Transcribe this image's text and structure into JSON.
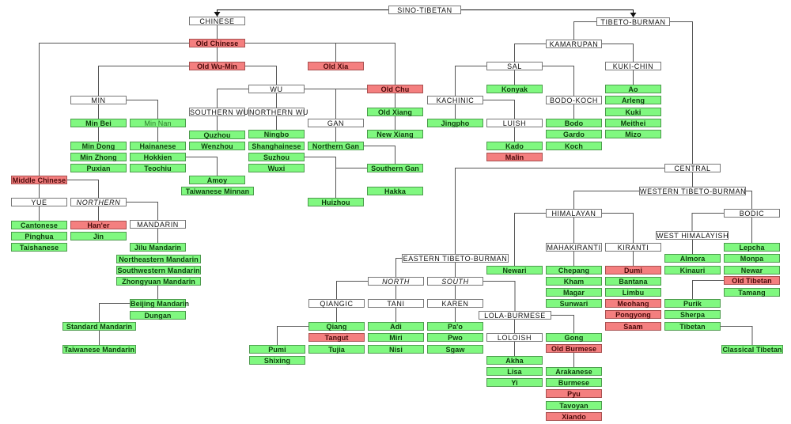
{
  "colors": {
    "living": "#80f880",
    "extinct": "#f47f7f",
    "group": "#ffffff",
    "line": "#555555"
  },
  "legend_types": {
    "group": "subgroup (white)",
    "living": "living language (green)",
    "extinct": "extinct / historical (red)"
  },
  "nodes": [
    {
      "id": "sino-tibetan",
      "label": "SINO-TIBETAN",
      "type": "group"
    },
    {
      "id": "chinese",
      "label": "CHINESE",
      "type": "group"
    },
    {
      "id": "tibeto-burman",
      "label": "TIBETO-BURMAN",
      "type": "group"
    },
    {
      "id": "old-chinese",
      "label": "Old Chinese",
      "type": "extinct"
    },
    {
      "id": "old-wu-min",
      "label": "Old Wu-Min",
      "type": "extinct"
    },
    {
      "id": "old-xia",
      "label": "Old Xia",
      "type": "extinct"
    },
    {
      "id": "wu",
      "label": "WU",
      "type": "group"
    },
    {
      "id": "old-chu",
      "label": "Old Chu",
      "type": "extinct"
    },
    {
      "id": "min",
      "label": "MIN",
      "type": "group"
    },
    {
      "id": "southern-wu",
      "label": "SOUTHERN WU",
      "type": "group"
    },
    {
      "id": "northern-wu",
      "label": "NORTHERN WU",
      "type": "group"
    },
    {
      "id": "old-xiang",
      "label": "Old Xiang",
      "type": "living"
    },
    {
      "id": "gan",
      "label": "GAN",
      "type": "group"
    },
    {
      "id": "min-bei",
      "label": "Min Bei",
      "type": "living"
    },
    {
      "id": "min-nan",
      "label": "Min Nan",
      "type": "living",
      "faint": true
    },
    {
      "id": "quzhou",
      "label": "Quzhou",
      "type": "living"
    },
    {
      "id": "ningbo",
      "label": "Ningbo",
      "type": "living"
    },
    {
      "id": "new-xiang",
      "label": "New Xiang",
      "type": "living"
    },
    {
      "id": "min-dong",
      "label": "Min Dong",
      "type": "living"
    },
    {
      "id": "hainanese",
      "label": "Hainanese",
      "type": "living"
    },
    {
      "id": "wenzhou",
      "label": "Wenzhou",
      "type": "living"
    },
    {
      "id": "shanghainese",
      "label": "Shanghainese",
      "type": "living"
    },
    {
      "id": "northern-gan",
      "label": "Northern Gan",
      "type": "living"
    },
    {
      "id": "min-zhong",
      "label": "Min Zhong",
      "type": "living"
    },
    {
      "id": "hokkien",
      "label": "Hokkien",
      "type": "living"
    },
    {
      "id": "suzhou",
      "label": "Suzhou",
      "type": "living"
    },
    {
      "id": "puxian",
      "label": "Puxian",
      "type": "living"
    },
    {
      "id": "teochiu",
      "label": "Teochiu",
      "type": "living"
    },
    {
      "id": "wuxi",
      "label": "Wuxi",
      "type": "living"
    },
    {
      "id": "southern-gan",
      "label": "Southern Gan",
      "type": "living"
    },
    {
      "id": "middle-chinese",
      "label": "Middle Chinese",
      "type": "extinct"
    },
    {
      "id": "amoy",
      "label": "Amoy",
      "type": "living"
    },
    {
      "id": "taiwanese-minnan",
      "label": "Taiwanese Minnan",
      "type": "living"
    },
    {
      "id": "hakka",
      "label": "Hakka",
      "type": "living"
    },
    {
      "id": "yue",
      "label": "YUE",
      "type": "group"
    },
    {
      "id": "northern",
      "label": "NORTHERN",
      "type": "group",
      "italic": true
    },
    {
      "id": "huizhou",
      "label": "Huizhou",
      "type": "living"
    },
    {
      "id": "cantonese",
      "label": "Cantonese",
      "type": "living"
    },
    {
      "id": "haner",
      "label": "Han'er",
      "type": "extinct"
    },
    {
      "id": "mandarin",
      "label": "MANDARIN",
      "type": "group"
    },
    {
      "id": "pinghua",
      "label": "Pinghua",
      "type": "living"
    },
    {
      "id": "jin",
      "label": "Jin",
      "type": "living"
    },
    {
      "id": "taishanese",
      "label": "Taishanese",
      "type": "living"
    },
    {
      "id": "jilu-mandarin",
      "label": "Jilu Mandarin",
      "type": "living"
    },
    {
      "id": "northeastern-mandarin",
      "label": "Northeastern Mandarin",
      "type": "living"
    },
    {
      "id": "southwestern-mandarin",
      "label": "Southwestern Mandarin",
      "type": "living"
    },
    {
      "id": "zhongyuan-mandarin",
      "label": "Zhongyuan Mandarin",
      "type": "living"
    },
    {
      "id": "beijing-mandarin",
      "label": "Beijing Mandarin",
      "type": "living"
    },
    {
      "id": "dungan",
      "label": "Dungan",
      "type": "living"
    },
    {
      "id": "standard-mandarin",
      "label": "Standard Mandarin",
      "type": "living"
    },
    {
      "id": "taiwanese-mandarin",
      "label": "Taiwanese Mandarin",
      "type": "living"
    },
    {
      "id": "kamarupan",
      "label": "KAMARUPAN",
      "type": "group"
    },
    {
      "id": "sal",
      "label": "SAL",
      "type": "group"
    },
    {
      "id": "kuki-chin",
      "label": "KUKI-CHIN",
      "type": "group"
    },
    {
      "id": "konyak",
      "label": "Konyak",
      "type": "living"
    },
    {
      "id": "ao",
      "label": "Ao",
      "type": "living"
    },
    {
      "id": "kachinic",
      "label": "KACHINIC",
      "type": "group"
    },
    {
      "id": "bodo-koch",
      "label": "BODO-KOCH",
      "type": "group"
    },
    {
      "id": "arleng",
      "label": "Arleng",
      "type": "living"
    },
    {
      "id": "kuki",
      "label": "Kuki",
      "type": "living"
    },
    {
      "id": "jingpho",
      "label": "Jingpho",
      "type": "living"
    },
    {
      "id": "luish",
      "label": "LUISH",
      "type": "group"
    },
    {
      "id": "bodo",
      "label": "Bodo",
      "type": "living"
    },
    {
      "id": "meithei",
      "label": "Meithei",
      "type": "living"
    },
    {
      "id": "gardo",
      "label": "Gardo",
      "type": "living"
    },
    {
      "id": "mizo",
      "label": "Mizo",
      "type": "living"
    },
    {
      "id": "kado",
      "label": "Kado",
      "type": "living"
    },
    {
      "id": "koch",
      "label": "Koch",
      "type": "living"
    },
    {
      "id": "malin",
      "label": "Malin",
      "type": "extinct"
    },
    {
      "id": "central",
      "label": "CENTRAL",
      "type": "group"
    },
    {
      "id": "western-tb",
      "label": "WESTERN TIBETO-BURMAN",
      "type": "group"
    },
    {
      "id": "himalayan",
      "label": "HIMALAYAN",
      "type": "group"
    },
    {
      "id": "bodic",
      "label": "BODIC",
      "type": "group"
    },
    {
      "id": "west-himalayish",
      "label": "WEST HIMALAYISH",
      "type": "group"
    },
    {
      "id": "mahakiranti",
      "label": "MAHAKIRANTI",
      "type": "group"
    },
    {
      "id": "kiranti",
      "label": "KIRANTI",
      "type": "group"
    },
    {
      "id": "lepcha",
      "label": "Lepcha",
      "type": "living"
    },
    {
      "id": "eastern-tb",
      "label": "EASTERN TIBETO-BURMAN",
      "type": "group"
    },
    {
      "id": "almora",
      "label": "Almora",
      "type": "living"
    },
    {
      "id": "monpa",
      "label": "Monpa",
      "type": "living"
    },
    {
      "id": "newari",
      "label": "Newari",
      "type": "living"
    },
    {
      "id": "chepang",
      "label": "Chepang",
      "type": "living"
    },
    {
      "id": "dumi",
      "label": "Dumi",
      "type": "extinct"
    },
    {
      "id": "kinauri",
      "label": "Kinauri",
      "type": "living"
    },
    {
      "id": "newar",
      "label": "Newar",
      "type": "living"
    },
    {
      "id": "north",
      "label": "NORTH",
      "type": "group",
      "italic": true
    },
    {
      "id": "south",
      "label": "SOUTH",
      "type": "group",
      "italic": true
    },
    {
      "id": "kham",
      "label": "Kham",
      "type": "living"
    },
    {
      "id": "bantana",
      "label": "Bantana",
      "type": "living"
    },
    {
      "id": "old-tibetan",
      "label": "Old Tibetan",
      "type": "extinct"
    },
    {
      "id": "magar",
      "label": "Magar",
      "type": "living"
    },
    {
      "id": "limbu",
      "label": "Limbu",
      "type": "living"
    },
    {
      "id": "tamang",
      "label": "Tamang",
      "type": "living"
    },
    {
      "id": "qiangic",
      "label": "QIANGIC",
      "type": "group"
    },
    {
      "id": "tani",
      "label": "TANI",
      "type": "group"
    },
    {
      "id": "karen",
      "label": "KAREN",
      "type": "group"
    },
    {
      "id": "sunwari",
      "label": "Sunwari",
      "type": "living"
    },
    {
      "id": "meohang",
      "label": "Meohang",
      "type": "extinct"
    },
    {
      "id": "purik",
      "label": "Purik",
      "type": "living"
    },
    {
      "id": "lola-burmese",
      "label": "LOLA-BURMESE",
      "type": "group"
    },
    {
      "id": "pongyong",
      "label": "Pongyong",
      "type": "extinct"
    },
    {
      "id": "sherpa",
      "label": "Sherpa",
      "type": "living"
    },
    {
      "id": "qiang",
      "label": "Qiang",
      "type": "living"
    },
    {
      "id": "adi",
      "label": "Adi",
      "type": "living"
    },
    {
      "id": "pao",
      "label": "Pa'o",
      "type": "living"
    },
    {
      "id": "saam",
      "label": "Saam",
      "type": "extinct"
    },
    {
      "id": "tibetan",
      "label": "Tibetan",
      "type": "living"
    },
    {
      "id": "tangut",
      "label": "Tangut",
      "type": "extinct"
    },
    {
      "id": "miri",
      "label": "Miri",
      "type": "living"
    },
    {
      "id": "pwo",
      "label": "Pwo",
      "type": "living"
    },
    {
      "id": "loloish",
      "label": "LOLOISH",
      "type": "group"
    },
    {
      "id": "gong",
      "label": "Gong",
      "type": "living"
    },
    {
      "id": "pumi",
      "label": "Pumi",
      "type": "living"
    },
    {
      "id": "tujia",
      "label": "Tujia",
      "type": "living"
    },
    {
      "id": "nisi",
      "label": "Nisi",
      "type": "living"
    },
    {
      "id": "sgaw",
      "label": "Sgaw",
      "type": "living"
    },
    {
      "id": "old-burmese",
      "label": "Old Burmese",
      "type": "extinct"
    },
    {
      "id": "classical-tibetan",
      "label": "Classical Tibetan",
      "type": "living"
    },
    {
      "id": "shixing",
      "label": "Shixing",
      "type": "living"
    },
    {
      "id": "akha",
      "label": "Akha",
      "type": "living"
    },
    {
      "id": "lisa",
      "label": "Lisa",
      "type": "living"
    },
    {
      "id": "arakanese",
      "label": "Arakanese",
      "type": "living"
    },
    {
      "id": "yi",
      "label": "Yi",
      "type": "living"
    },
    {
      "id": "burmese",
      "label": "Burmese",
      "type": "living"
    },
    {
      "id": "pyu",
      "label": "Pyu",
      "type": "extinct"
    },
    {
      "id": "tavoyan",
      "label": "Tavoyan",
      "type": "living"
    },
    {
      "id": "xiando",
      "label": "Xiando",
      "type": "extinct"
    }
  ],
  "edges": [
    [
      "sino-tibetan",
      "chinese"
    ],
    [
      "sino-tibetan",
      "tibeto-burman"
    ],
    [
      "chinese",
      "old-chinese"
    ],
    [
      "old-chinese",
      "middle-chinese"
    ],
    [
      "old-chinese",
      "old-wu-min"
    ],
    [
      "old-chinese",
      "old-xia"
    ],
    [
      "old-chinese",
      "old-chu"
    ],
    [
      "old-wu-min",
      "min"
    ],
    [
      "old-wu-min",
      "wu"
    ],
    [
      "min",
      "min-bei"
    ],
    [
      "min",
      "min-nan"
    ],
    [
      "min-bei",
      "min-dong"
    ],
    [
      "min-nan",
      "hainanese"
    ],
    [
      "hokkien",
      "amoy"
    ],
    [
      "wu",
      "southern-wu"
    ],
    [
      "wu",
      "northern-wu"
    ],
    [
      "wu",
      "gan"
    ],
    [
      "southern-wu",
      "quzhou"
    ],
    [
      "northern-wu",
      "ningbo"
    ],
    [
      "suzhou",
      "huizhou"
    ],
    [
      "old-chu",
      "old-xiang"
    ],
    [
      "old-chu",
      "gan"
    ],
    [
      "old-xiang",
      "new-xiang"
    ],
    [
      "gan",
      "northern-gan"
    ],
    [
      "northern-gan",
      "southern-gan"
    ],
    [
      "southern-gan",
      "huizhou"
    ],
    [
      "middle-chinese",
      "yue"
    ],
    [
      "middle-chinese",
      "northern"
    ],
    [
      "yue",
      "cantonese"
    ],
    [
      "northern",
      "haner"
    ],
    [
      "northern",
      "mandarin"
    ],
    [
      "mandarin",
      "jilu-mandarin"
    ],
    [
      "zhongyuan-mandarin",
      "beijing-mandarin"
    ],
    [
      "beijing-mandarin",
      "standard-mandarin"
    ],
    [
      "standard-mandarin",
      "taiwanese-mandarin"
    ],
    [
      "tibeto-burman",
      "kamarupan"
    ],
    [
      "tibeto-burman",
      "central"
    ],
    [
      "kamarupan",
      "sal"
    ],
    [
      "kamarupan",
      "kuki-chin"
    ],
    [
      "sal",
      "kachinic"
    ],
    [
      "sal",
      "konyak"
    ],
    [
      "sal",
      "bodo-koch"
    ],
    [
      "kuki-chin",
      "ao"
    ],
    [
      "kachinic",
      "jingpho"
    ],
    [
      "kachinic",
      "luish"
    ],
    [
      "luish",
      "kado"
    ],
    [
      "bodo-koch",
      "bodo"
    ],
    [
      "central",
      "eastern-tb"
    ],
    [
      "central",
      "western-tb"
    ],
    [
      "western-tb",
      "himalayan"
    ],
    [
      "western-tb",
      "bodic"
    ],
    [
      "himalayan",
      "newari"
    ],
    [
      "himalayan",
      "mahakiranti"
    ],
    [
      "himalayan",
      "kiranti"
    ],
    [
      "mahakiranti",
      "chepang"
    ],
    [
      "kiranti",
      "dumi"
    ],
    [
      "bodic",
      "west-himalayish"
    ],
    [
      "bodic",
      "lepcha"
    ],
    [
      "west-himalayish",
      "almora"
    ],
    [
      "old-tibetan",
      "purik"
    ],
    [
      "tibetan",
      "classical-tibetan"
    ],
    [
      "eastern-tb",
      "north"
    ],
    [
      "eastern-tb",
      "south"
    ],
    [
      "north",
      "qiangic"
    ],
    [
      "north",
      "tani"
    ],
    [
      "south",
      "karen"
    ],
    [
      "south",
      "lola-burmese"
    ],
    [
      "qiangic",
      "qiang"
    ],
    [
      "qiang",
      "pumi"
    ],
    [
      "tani",
      "adi"
    ],
    [
      "karen",
      "pao"
    ],
    [
      "lola-burmese",
      "loloish"
    ],
    [
      "lola-burmese",
      "gong"
    ],
    [
      "loloish",
      "akha"
    ],
    [
      "old-burmese",
      "arakanese"
    ]
  ]
}
